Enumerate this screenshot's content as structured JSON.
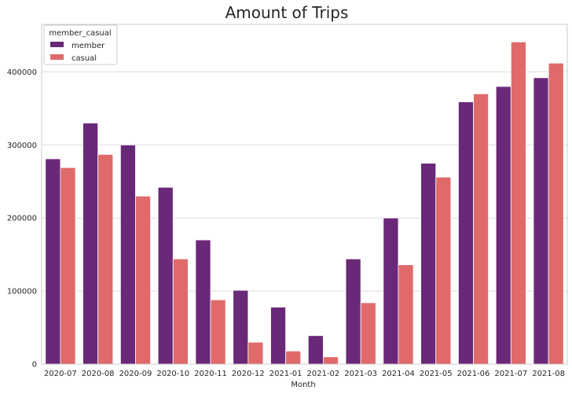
{
  "chart_data": {
    "type": "bar",
    "title": "Amount of Trips",
    "xlabel": "Month",
    "ylabel": "",
    "categories": [
      "2020-07",
      "2020-08",
      "2020-09",
      "2020-10",
      "2020-11",
      "2020-12",
      "2021-01",
      "2021-02",
      "2021-03",
      "2021-04",
      "2021-05",
      "2021-06",
      "2021-07",
      "2021-08"
    ],
    "series": [
      {
        "name": "member",
        "color": "#6a2878",
        "values": [
          281000,
          330000,
          300000,
          242000,
          170000,
          101000,
          78000,
          39000,
          144000,
          200000,
          275000,
          359000,
          380000,
          392000
        ]
      },
      {
        "name": "casual",
        "color": "#e06a6a",
        "values": [
          269000,
          287000,
          230000,
          144000,
          88000,
          30000,
          18000,
          10000,
          84000,
          136000,
          256000,
          370000,
          441000,
          412000
        ]
      }
    ],
    "ylim": [
      0,
      465000
    ],
    "yticks": [
      0,
      100000,
      200000,
      300000,
      400000
    ],
    "ytick_labels": [
      "0",
      "100000",
      "200000",
      "300000",
      "400000"
    ],
    "grid": true,
    "legend": {
      "title": "member_casual",
      "placement": "top-left"
    }
  }
}
